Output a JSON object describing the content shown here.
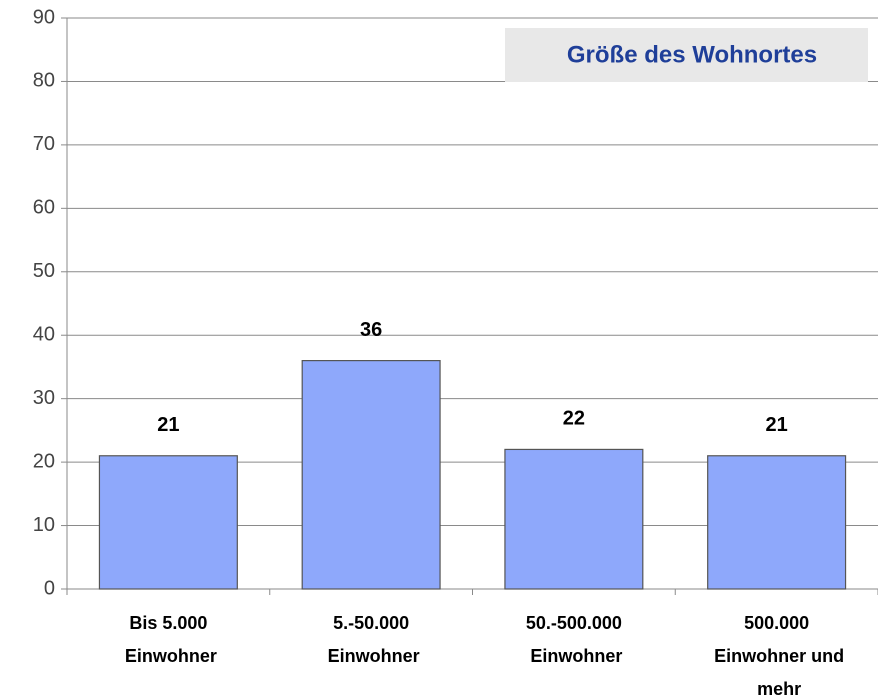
{
  "chart_data": {
    "type": "bar",
    "title": "Größe des Wohnortes",
    "categories": [
      "Bis 5.000 Einwohner",
      "5.-50.000 Einwohner",
      "50.-500.000 Einwohner",
      "500.000 Einwohner und mehr"
    ],
    "values": [
      21,
      36,
      22,
      21
    ],
    "color": "#8ea8fb",
    "ylim": [
      0,
      90
    ],
    "yticks": [
      0,
      10,
      20,
      30,
      40,
      50,
      60,
      70,
      80,
      90
    ],
    "grid": true
  }
}
